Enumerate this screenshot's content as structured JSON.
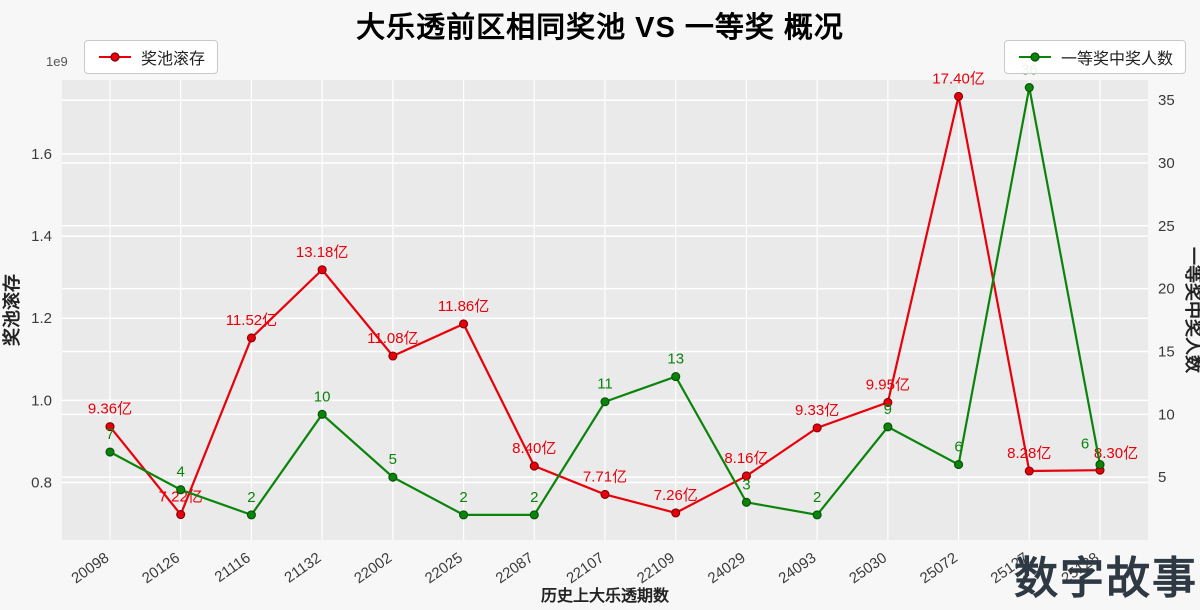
{
  "watermark": "数字故事",
  "chart_data": {
    "type": "line",
    "title": "大乐透前区相同奖池 VS 一等奖 概况",
    "xlabel": "历史上大乐透期数",
    "ylabel_left": "奖池滚存",
    "ylabel_right": "一等奖中奖人数",
    "offset_text": "1e9",
    "legend": [
      "奖池滚存",
      "一等奖中奖人数"
    ],
    "legend_positions": [
      "upper-left",
      "upper-right"
    ],
    "grid": true,
    "categories": [
      "20098",
      "20126",
      "21116",
      "21132",
      "22002",
      "22025",
      "22087",
      "22107",
      "22109",
      "24029",
      "24093",
      "25030",
      "25072",
      "25127",
      "25128"
    ],
    "series": [
      {
        "name": "奖池滚存",
        "axis": "left",
        "unit": "亿",
        "color": "#e8000b",
        "marker_edge": "#7e0006",
        "values_yi": [
          9.36,
          7.22,
          11.52,
          13.18,
          11.08,
          11.86,
          8.4,
          7.71,
          7.26,
          8.16,
          9.33,
          9.95,
          17.4,
          8.28,
          8.3
        ],
        "labels": [
          "9.36亿",
          "7.22亿",
          "11.52亿",
          "13.18亿",
          "11.08亿",
          "11.86亿",
          "8.40亿",
          "7.71亿",
          "7.26亿",
          "8.16亿",
          "9.33亿",
          "9.95亿",
          "17.40亿",
          "8.28亿",
          "8.30亿"
        ]
      },
      {
        "name": "一等奖中奖人数",
        "axis": "right",
        "color": "#0a840a",
        "marker_edge": "#055005",
        "values": [
          7,
          4,
          2,
          10,
          5,
          2,
          2,
          11,
          13,
          3,
          2,
          9,
          6,
          36,
          6
        ],
        "labels": [
          "7",
          "4",
          "2",
          "10",
          "5",
          "2",
          "2",
          "11",
          "13",
          "3",
          "2",
          "9",
          "6",
          "36",
          "6"
        ]
      }
    ],
    "left_axis": {
      "label": "奖池滚存",
      "scale": "1e9",
      "ticks": [
        0.8,
        1.0,
        1.2,
        1.4,
        1.6
      ],
      "min": 0.66,
      "max": 1.78
    },
    "right_axis": {
      "label": "一等奖中奖人数",
      "ticks": [
        5,
        10,
        15,
        20,
        25,
        30,
        35
      ],
      "min": 0,
      "max": 36.6
    },
    "colors": {
      "figure_bg": "#f7f7f7",
      "plot_bg": "#eaeaea",
      "grid": "#ffffff",
      "tick_text": "#3a3a3a",
      "axis_label_text": "#222222",
      "title_text": "#000000",
      "watermark_text": "#2e3944"
    }
  }
}
